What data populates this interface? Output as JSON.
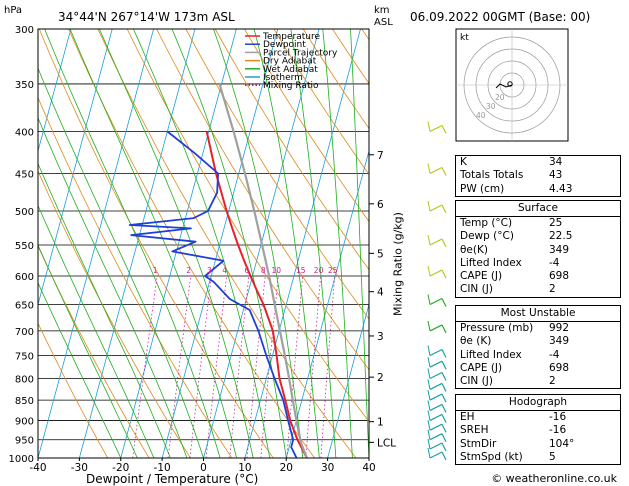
{
  "header": {
    "unit_left": "hPa",
    "location": "34°44'N  267°14'W  173m  ASL",
    "unit_km": "km",
    "unit_asl": "ASL",
    "datetime": "06.09.2022  00GMT  (Base: 00)"
  },
  "chart_data": {
    "type": "line",
    "title": "",
    "xlabel": "Dewpoint / Temperature (°C)",
    "ylabel": "hPa",
    "right_label": "Mixing Ratio (g/kg)",
    "xlim": [
      -40,
      40
    ],
    "ylim": [
      1000,
      300
    ],
    "y_scale": "log",
    "grid": true,
    "x_ticks": [
      "-40",
      "-30",
      "-20",
      "-10",
      "0",
      "10",
      "20",
      "30",
      "40"
    ],
    "y_ticks": [
      "300",
      "350",
      "400",
      "450",
      "500",
      "550",
      "600",
      "650",
      "700",
      "750",
      "800",
      "850",
      "900",
      "950",
      "1000"
    ],
    "km_ticks": [
      {
        "label": "7",
        "p": 427
      },
      {
        "label": "6",
        "p": 490
      },
      {
        "label": "5",
        "p": 563
      },
      {
        "label": "4",
        "p": 627
      },
      {
        "label": "3",
        "p": 710
      },
      {
        "label": "2",
        "p": 797
      },
      {
        "label": "1",
        "p": 903
      },
      {
        "label": "LCL",
        "p": 957
      }
    ],
    "mixing_ratio_labels": [
      "1",
      "2",
      "3",
      "4",
      "6",
      "8",
      "10",
      "15",
      "20",
      "25"
    ],
    "legend": [
      "Temperature",
      "Dewpoint",
      "Parcel Trajectory",
      "Dry Adiabat",
      "Wet Adiabat",
      "Isotherm",
      "Mixing Ratio"
    ],
    "legend_position": "top-left",
    "colors": {
      "temperature": "#e8202a",
      "dewpoint": "#1f3fd6",
      "parcel": "#a0a0a0",
      "dry_adiabat": "#e08a1c",
      "wet_adiabat": "#1fae1f",
      "isotherm": "#19a0d8",
      "mixing_ratio": "#d0169e"
    },
    "series": [
      {
        "name": "Temperature",
        "points": [
          {
            "p": 1000,
            "t": 25
          },
          {
            "p": 950,
            "t": 21.5
          },
          {
            "p": 900,
            "t": 18.5
          },
          {
            "p": 850,
            "t": 16.0
          },
          {
            "p": 800,
            "t": 13.2
          },
          {
            "p": 750,
            "t": 11.0
          },
          {
            "p": 700,
            "t": 8.5
          },
          {
            "p": 650,
            "t": 4.5
          },
          {
            "p": 625,
            "t": 2.0
          },
          {
            "p": 600,
            "t": -0.5
          },
          {
            "p": 575,
            "t": -3.0
          },
          {
            "p": 550,
            "t": -5.5
          },
          {
            "p": 525,
            "t": -8.0
          },
          {
            "p": 500,
            "t": -10.5
          },
          {
            "p": 450,
            "t": -15.5
          },
          {
            "p": 400,
            "t": -20.5
          }
        ]
      },
      {
        "name": "Dewpoint",
        "points": [
          {
            "p": 1000,
            "t": 22.5
          },
          {
            "p": 970,
            "t": 20.5
          },
          {
            "p": 950,
            "t": 20.5
          },
          {
            "p": 900,
            "t": 18.0
          },
          {
            "p": 850,
            "t": 15.5
          },
          {
            "p": 800,
            "t": 12.0
          },
          {
            "p": 750,
            "t": 8.5
          },
          {
            "p": 700,
            "t": 5.0
          },
          {
            "p": 660,
            "t": 1.5
          },
          {
            "p": 640,
            "t": -4.0
          },
          {
            "p": 610,
            "t": -9.0
          },
          {
            "p": 600,
            "t": -11.5
          },
          {
            "p": 575,
            "t": -8.0
          },
          {
            "p": 560,
            "t": -21.0
          },
          {
            "p": 545,
            "t": -16.0
          },
          {
            "p": 535,
            "t": -32.0
          },
          {
            "p": 525,
            "t": -18.0
          },
          {
            "p": 520,
            "t": -33.0
          },
          {
            "p": 510,
            "t": -18.0
          },
          {
            "p": 500,
            "t": -15.0
          },
          {
            "p": 475,
            "t": -14.0
          },
          {
            "p": 450,
            "t": -15.0
          },
          {
            "p": 425,
            "t": -22.0
          },
          {
            "p": 400,
            "t": -30.0
          }
        ]
      },
      {
        "name": "Parcel Trajectory",
        "points": [
          {
            "p": 1000,
            "t": 25
          },
          {
            "p": 957,
            "t": 22.5
          },
          {
            "p": 900,
            "t": 20.0
          },
          {
            "p": 850,
            "t": 17.8
          },
          {
            "p": 800,
            "t": 15.5
          },
          {
            "p": 750,
            "t": 13.0
          },
          {
            "p": 700,
            "t": 10.2
          },
          {
            "p": 650,
            "t": 7.2
          },
          {
            "p": 600,
            "t": 4.0
          },
          {
            "p": 550,
            "t": 0.3
          },
          {
            "p": 500,
            "t": -3.8
          },
          {
            "p": 450,
            "t": -8.5
          },
          {
            "p": 400,
            "t": -14.0
          },
          {
            "p": 350,
            "t": -20.5
          }
        ]
      }
    ],
    "wind_barbs_levels": [
      1000,
      975,
      950,
      925,
      900,
      875,
      850,
      825,
      800,
      775,
      750,
      700,
      650,
      600,
      550,
      500,
      450,
      400
    ],
    "hodograph": {
      "label": "kt",
      "ring_labels": [
        "20",
        "30",
        "40"
      ]
    }
  },
  "stats": {
    "top": [
      {
        "key": "K",
        "value": "34"
      },
      {
        "key": "Totals Totals",
        "value": "43"
      },
      {
        "key": "PW (cm)",
        "value": "4.43"
      }
    ],
    "surface": {
      "title": "Surface",
      "rows": [
        {
          "key": "Temp (°C)",
          "value": "25"
        },
        {
          "key": "Dewp (°C)",
          "value": "22.5"
        },
        {
          "key": "θe(K)",
          "value": "349"
        },
        {
          "key": "Lifted Index",
          "value": "-4"
        },
        {
          "key": "CAPE (J)",
          "value": "698"
        },
        {
          "key": "CIN (J)",
          "value": "2"
        }
      ]
    },
    "most_unstable": {
      "title": "Most Unstable",
      "rows": [
        {
          "key": "Pressure (mb)",
          "value": "992"
        },
        {
          "key": "θe (K)",
          "value": "349"
        },
        {
          "key": "Lifted Index",
          "value": "-4"
        },
        {
          "key": "CAPE (J)",
          "value": "698"
        },
        {
          "key": "CIN (J)",
          "value": "2"
        }
      ]
    },
    "hodograph": {
      "title": "Hodograph",
      "rows": [
        {
          "key": "EH",
          "value": "-16"
        },
        {
          "key": "SREH",
          "value": "-16"
        },
        {
          "key": "StmDir",
          "value": "104°"
        },
        {
          "key": "StmSpd (kt)",
          "value": "5"
        }
      ]
    }
  },
  "copyright": "© weatheronline.co.uk"
}
